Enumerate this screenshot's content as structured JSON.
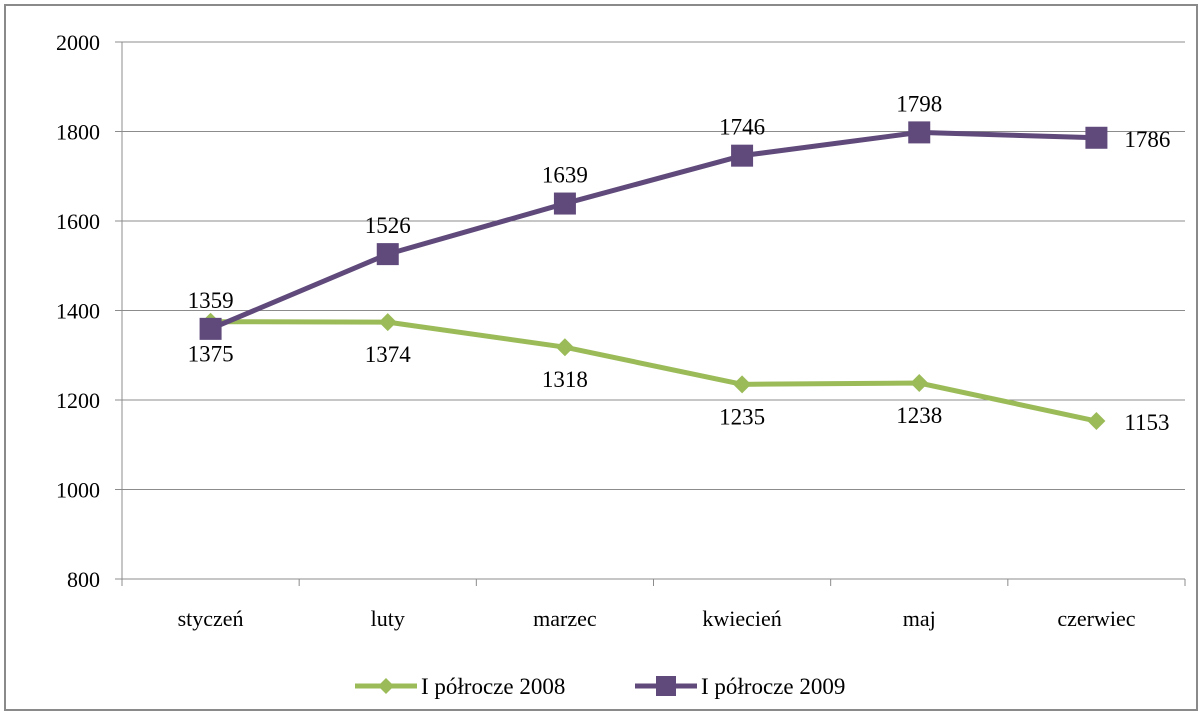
{
  "chart_data": {
    "type": "line",
    "title": "",
    "xlabel": "",
    "ylabel": "",
    "categories": [
      "styczeń",
      "luty",
      "marzec",
      "kwiecień",
      "maj",
      "czerwiec"
    ],
    "ylim": [
      800,
      2000
    ],
    "yticks": [
      800,
      1000,
      1200,
      1400,
      1600,
      1800,
      2000
    ],
    "grid": "horizontal",
    "legend_position": "bottom",
    "series": [
      {
        "name": "I półrocze 2008",
        "values": [
          1375,
          1374,
          1318,
          1235,
          1238,
          1153
        ],
        "color": "#9bbb59",
        "marker": "diamond",
        "label_position": "below"
      },
      {
        "name": "I półrocze 2009",
        "values": [
          1359,
          1526,
          1639,
          1746,
          1798,
          1786
        ],
        "color": "#604a7b",
        "marker": "square",
        "label_position": "above"
      }
    ]
  }
}
